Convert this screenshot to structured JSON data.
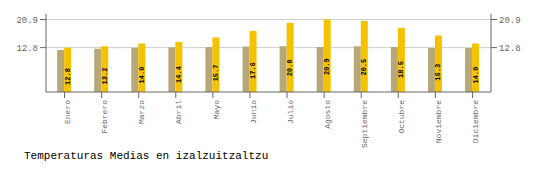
{
  "chart_data": {
    "type": "bar",
    "title": "Temperaturas Medias en izalzuitzaltzu",
    "categories": [
      "Enero",
      "Febrero",
      "Marzo",
      "Abril",
      "Mayo",
      "Junio",
      "Julio",
      "Agosto",
      "Septiembre",
      "Octubre",
      "Noviembre",
      "Diciembre"
    ],
    "series": [
      {
        "color": "#B8A878",
        "values": [
          12.1,
          12.5,
          12.8,
          12.9,
          13.0,
          13.1,
          13.2,
          13.0,
          13.2,
          13.0,
          12.7,
          12.7
        ]
      },
      {
        "color": "#F5C200",
        "values": [
          12.8,
          13.2,
          14.0,
          14.4,
          15.7,
          17.6,
          20.0,
          20.9,
          20.5,
          18.5,
          16.3,
          14.0
        ],
        "data_labels": true,
        "value_labels": [
          "12.8",
          "13.2",
          "14.0",
          "14.4",
          "15.7",
          "17.6",
          "20.0",
          "20.9",
          "20.5",
          "18.5",
          "16.3",
          "14.0"
        ]
      }
    ],
    "ylim": [
      0,
      22.5
    ],
    "yticks": [
      12.8,
      20.9
    ],
    "grid": true
  }
}
